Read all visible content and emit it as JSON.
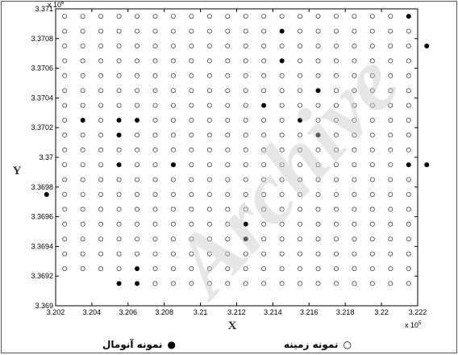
{
  "chart_data": {
    "type": "scatter",
    "xlabel": "X",
    "ylabel": "Y",
    "x_multiplier": "x 10",
    "x_exponent": "5",
    "y_multiplier": "x 10",
    "y_exponent": "6",
    "xlim": [
      320200,
      322200
    ],
    "ylim": [
      3369000,
      3371000
    ],
    "x_ticks": [
      "3.202",
      "3.204",
      "3.206",
      "3.208",
      "3.21",
      "3.212",
      "3.214",
      "3.216",
      "3.218",
      "3.22",
      "3.222"
    ],
    "y_ticks": [
      "3.369",
      "3.3692",
      "3.3694",
      "3.3696",
      "3.3698",
      "3.37",
      "3.3702",
      "3.3704",
      "3.3706",
      "3.3708",
      "3.371"
    ],
    "grid": false,
    "legend_position": "bottom",
    "background_grid": {
      "x_start": 320200,
      "x_step": 100,
      "x_count": 20,
      "y_start": 3369100,
      "y_step": 100,
      "y_count": 19,
      "marker": "open-circle",
      "missing": [
        [
          320200,
          3369100
        ],
        [
          320300,
          3369100
        ],
        [
          320400,
          3369100
        ],
        [
          320500,
          3369100
        ]
      ]
    },
    "series": [
      {
        "name": "نمونه زمینه",
        "marker": "open-circle",
        "color": "#000000"
      },
      {
        "name": "نمونه آنومال",
        "marker": "filled-circle",
        "color": "#000000",
        "points": [
          [
            322150,
            3370950
          ],
          [
            321450,
            3370850
          ],
          [
            322250,
            3370750
          ],
          [
            321450,
            3370650
          ],
          [
            321650,
            3370450
          ],
          [
            321350,
            3370350
          ],
          [
            320350,
            3370250
          ],
          [
            320550,
            3370250
          ],
          [
            320650,
            3370250
          ],
          [
            321550,
            3370250
          ],
          [
            320550,
            3370150
          ],
          [
            321650,
            3370150
          ],
          [
            320550,
            3369950
          ],
          [
            320850,
            3369950
          ],
          [
            322150,
            3369950
          ],
          [
            322250,
            3369950
          ],
          [
            320150,
            3369750
          ],
          [
            321250,
            3369550
          ],
          [
            321250,
            3369450
          ],
          [
            320650,
            3369250
          ],
          [
            320550,
            3369150
          ],
          [
            320650,
            3369150
          ]
        ]
      }
    ],
    "watermark": "Archive"
  }
}
